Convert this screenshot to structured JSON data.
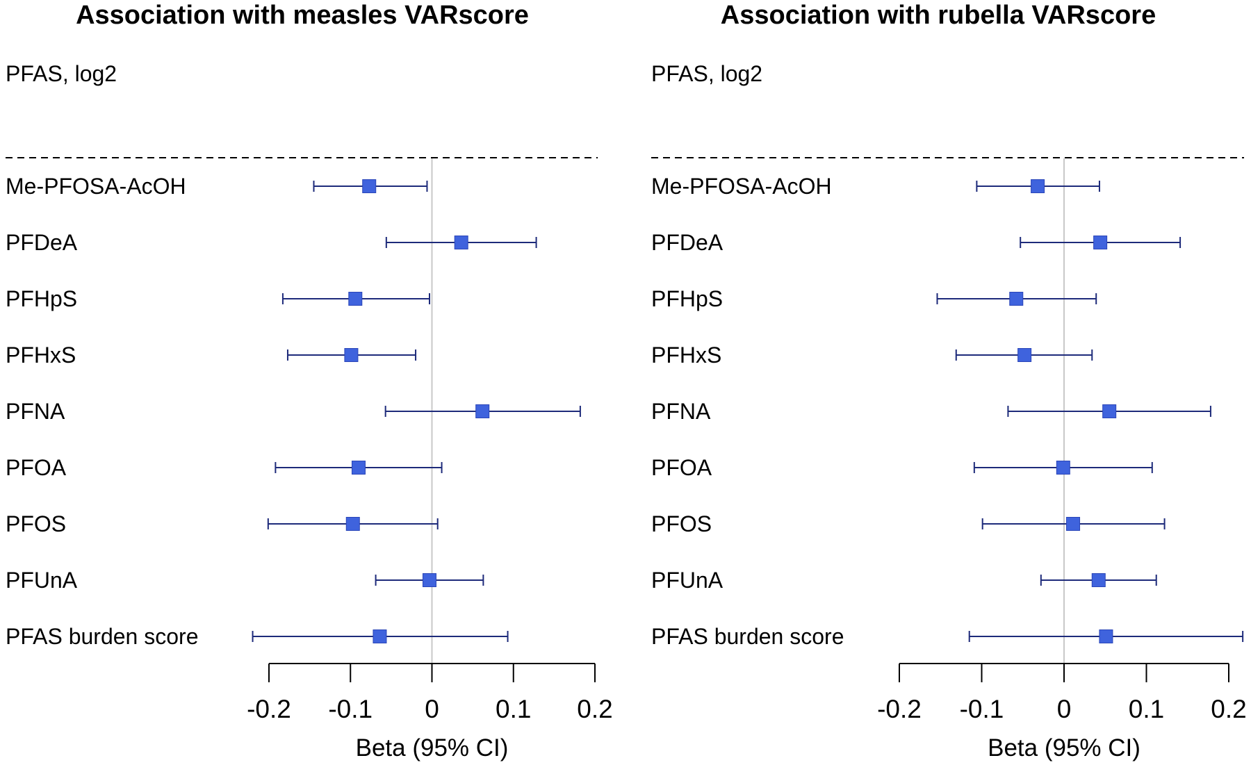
{
  "colors": {
    "marker": "#3f63dd",
    "marker_stroke": "#2a45b8",
    "ci": "#1d2a7a",
    "zero": "#c8c8c8",
    "axis": "#000000"
  },
  "chart_data": [
    {
      "type": "forest",
      "title": "Association with measles VARscore",
      "subtitle": "PFAS, log2",
      "xlabel": "Beta (95% CI)",
      "xlim": [
        -0.2,
        0.2
      ],
      "ticks": [
        -0.2,
        -0.1,
        0,
        0.1,
        0.2
      ],
      "tick_labels": [
        "-0.2",
        "-0.1",
        "0",
        "0.1",
        "0.2"
      ],
      "rows": [
        {
          "label": "Me-PFOSA-AcOH",
          "beta": -0.077,
          "lo": -0.145,
          "hi": -0.006
        },
        {
          "label": "PFDeA",
          "beta": 0.036,
          "lo": -0.056,
          "hi": 0.128
        },
        {
          "label": "PFHpS",
          "beta": -0.094,
          "lo": -0.183,
          "hi": -0.003
        },
        {
          "label": "PFHxS",
          "beta": -0.099,
          "lo": -0.177,
          "hi": -0.02
        },
        {
          "label": "PFNA",
          "beta": 0.062,
          "lo": -0.057,
          "hi": 0.182
        },
        {
          "label": "PFOA",
          "beta": -0.09,
          "lo": -0.192,
          "hi": 0.012
        },
        {
          "label": "PFOS",
          "beta": -0.097,
          "lo": -0.201,
          "hi": 0.007
        },
        {
          "label": "PFUnA",
          "beta": -0.003,
          "lo": -0.069,
          "hi": 0.063
        },
        {
          "label": "PFAS burden score",
          "beta": -0.064,
          "lo": -0.22,
          "hi": 0.093
        }
      ]
    },
    {
      "type": "forest",
      "title": "Association with rubella VARscore",
      "subtitle": "PFAS, log2",
      "xlabel": "Beta (95% CI)",
      "xlim": [
        -0.2,
        0.2
      ],
      "ticks": [
        -0.2,
        -0.1,
        0,
        0.1,
        0.2
      ],
      "tick_labels": [
        "-0.2",
        "-0.1",
        "0",
        "0.1",
        "0.2"
      ],
      "rows": [
        {
          "label": "Me-PFOSA-AcOH",
          "beta": -0.032,
          "lo": -0.106,
          "hi": 0.043
        },
        {
          "label": "PFDeA",
          "beta": 0.044,
          "lo": -0.053,
          "hi": 0.141
        },
        {
          "label": "PFHpS",
          "beta": -0.058,
          "lo": -0.154,
          "hi": 0.039
        },
        {
          "label": "PFHxS",
          "beta": -0.048,
          "lo": -0.131,
          "hi": 0.034
        },
        {
          "label": "PFNA",
          "beta": 0.055,
          "lo": -0.068,
          "hi": 0.178
        },
        {
          "label": "PFOA",
          "beta": -0.001,
          "lo": -0.109,
          "hi": 0.107
        },
        {
          "label": "PFOS",
          "beta": 0.011,
          "lo": -0.099,
          "hi": 0.122
        },
        {
          "label": "PFUnA",
          "beta": 0.042,
          "lo": -0.028,
          "hi": 0.112
        },
        {
          "label": "PFAS burden score",
          "beta": 0.051,
          "lo": -0.115,
          "hi": 0.217
        }
      ]
    }
  ]
}
